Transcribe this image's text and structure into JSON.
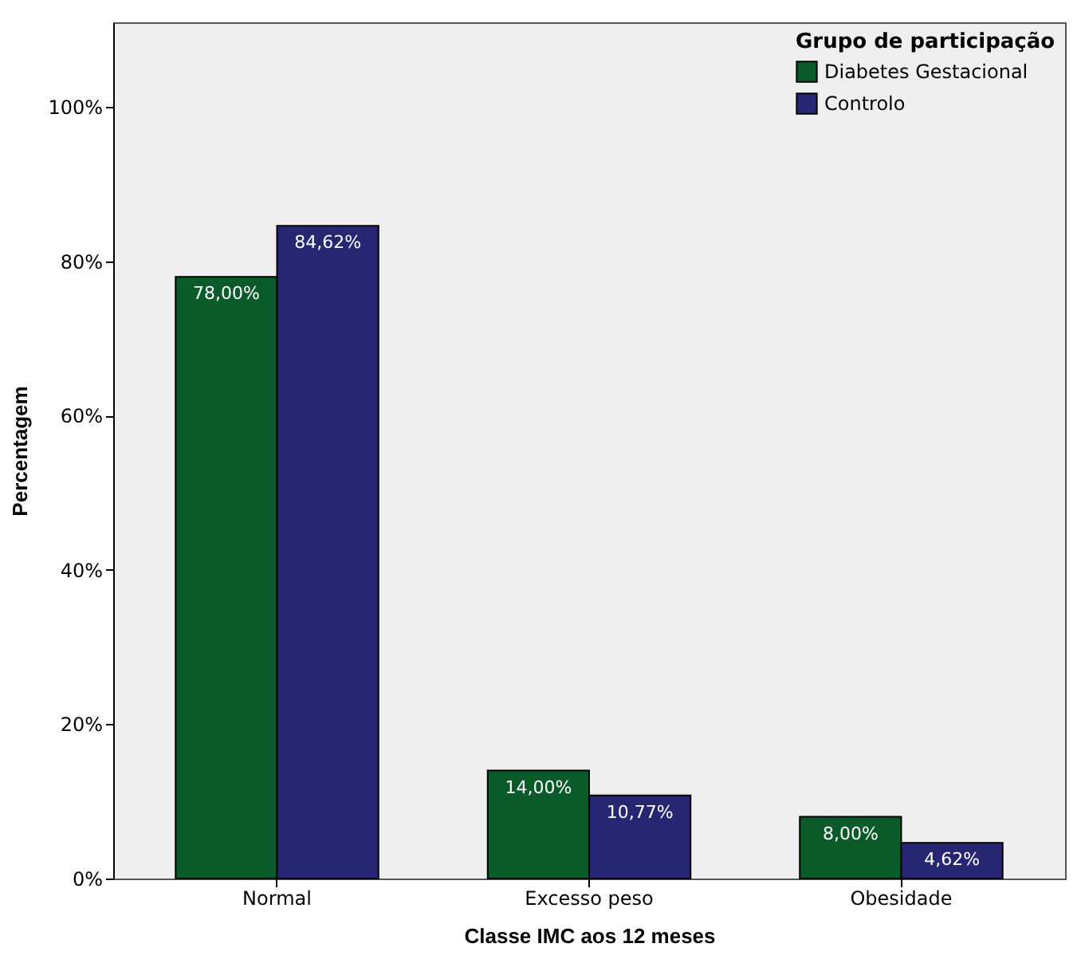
{
  "chart_data": {
    "type": "bar",
    "xlabel": "Classe IMC aos 12 meses",
    "ylabel": "Percentagem",
    "legend_title": "Grupo de participação",
    "categories": [
      "Normal",
      "Excesso peso",
      "Obesidade"
    ],
    "series": [
      {
        "name": "Diabetes Gestacional",
        "color": "#0b5a2a",
        "values": [
          78.0,
          14.0,
          8.0
        ],
        "value_labels": [
          "78,00%",
          "14,00%",
          "8,00%"
        ]
      },
      {
        "name": "Controlo",
        "color": "#262673",
        "values": [
          84.62,
          10.77,
          4.62
        ],
        "value_labels": [
          "84,62%",
          "10,77%",
          "4,62%"
        ]
      }
    ],
    "ylim": [
      0,
      111
    ],
    "yticks": [
      {
        "value": 0,
        "label": "0%"
      },
      {
        "value": 20,
        "label": "20%"
      },
      {
        "value": 40,
        "label": "40%"
      },
      {
        "value": 60,
        "label": "60%"
      },
      {
        "value": 80,
        "label": "80%"
      },
      {
        "value": 100,
        "label": "100%"
      }
    ],
    "grid": false,
    "legend": "top right"
  }
}
